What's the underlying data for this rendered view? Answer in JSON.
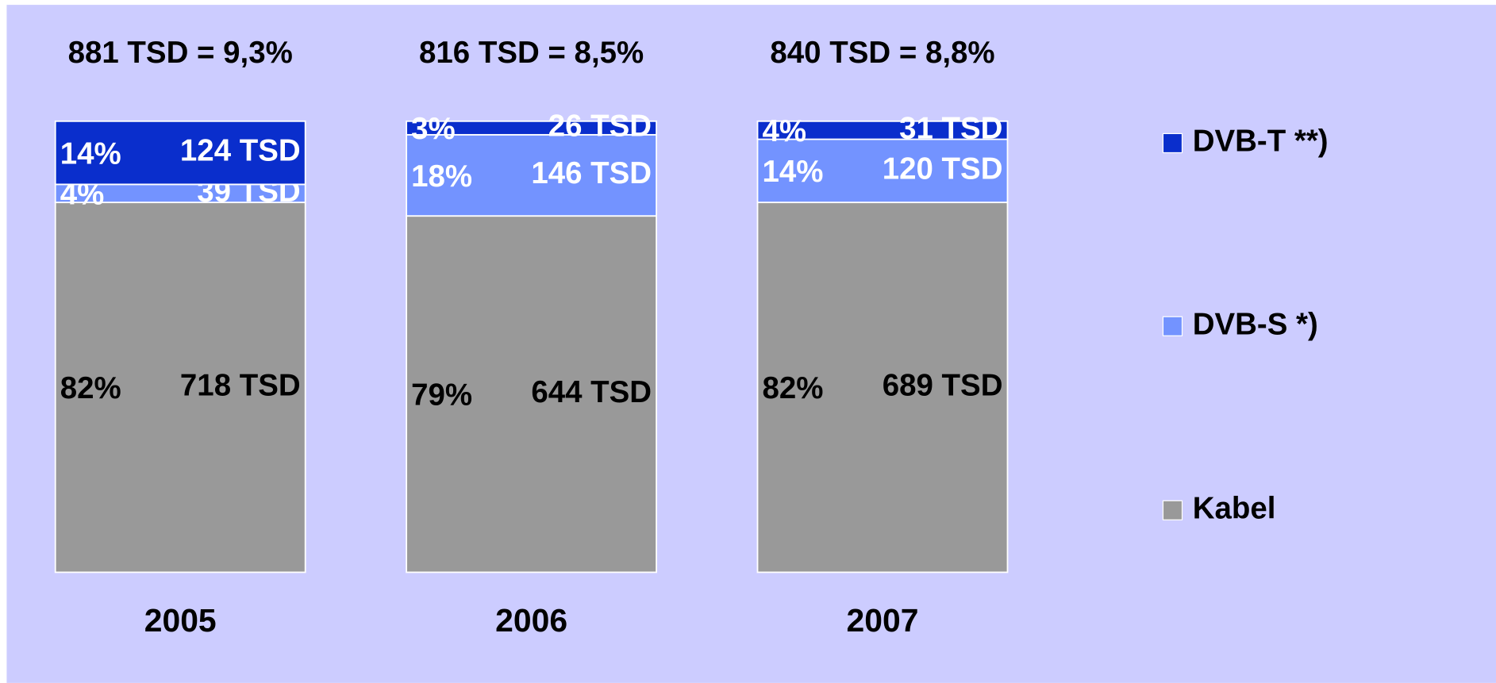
{
  "chart_data": {
    "type": "stacked_bar",
    "categories": [
      "2005",
      "2006",
      "2007"
    ],
    "totals": [
      "881 TSD = 9,3%",
      "816 TSD = 8,5%",
      "840 TSD = 8,8%"
    ],
    "ylim": [
      0,
      100
    ],
    "series": [
      {
        "name": "Kabel",
        "color": "#999999",
        "label_color": "#000000",
        "values": [
          82,
          79,
          82
        ],
        "value_labels": [
          "82%",
          "79%",
          "82%"
        ],
        "count_labels": [
          "718 TSD",
          "644 TSD",
          "689 TSD"
        ]
      },
      {
        "name": "DVB-S *)",
        "color": "#7393ff",
        "label_color": "#ffffff",
        "values": [
          4,
          18,
          14
        ],
        "value_labels": [
          "4%",
          "18%",
          "14%"
        ],
        "count_labels": [
          "39 TSD",
          "146 TSD",
          "120 TSD"
        ]
      },
      {
        "name": "DVB-T **)",
        "color": "#0a2ecc",
        "label_color": "#ffffff",
        "values": [
          14,
          3,
          4
        ],
        "value_labels": [
          "14%",
          "3%",
          "4%"
        ],
        "count_labels": [
          "124 TSD",
          "26 TSD",
          "31 TSD"
        ]
      }
    ]
  }
}
